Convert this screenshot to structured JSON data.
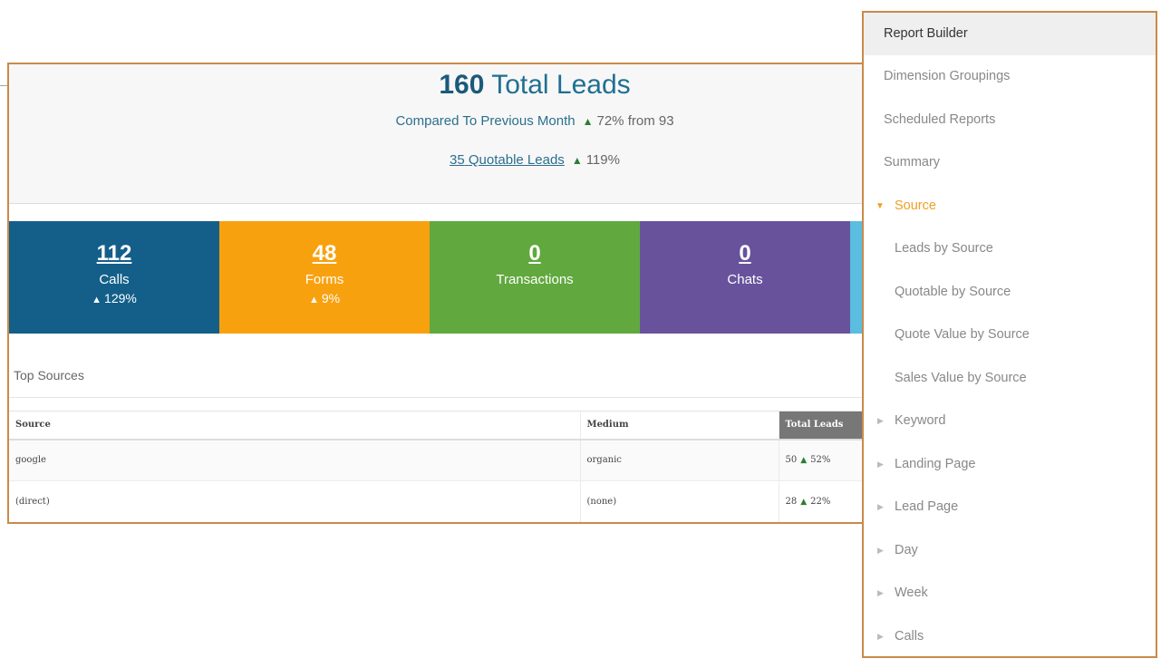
{
  "summary": {
    "total_leads_value": "160",
    "total_leads_label": "Total Leads",
    "compare_label": "Compared To Previous Month",
    "compare_change": "72% from 93",
    "quotable_value": "35",
    "quotable_label": "Quotable Leads",
    "quotable_change": "119%",
    "arrow_up": "▲"
  },
  "tiles": [
    {
      "value": "112",
      "label": "Calls",
      "change": "129%",
      "color": "#145f8a"
    },
    {
      "value": "48",
      "label": "Forms",
      "change": "9%",
      "color": "#f8a10f"
    },
    {
      "value": "0",
      "label": "Transactions",
      "change": "",
      "color": "#61a83e"
    },
    {
      "value": "0",
      "label": "Chats",
      "change": "",
      "color": "#68529c"
    }
  ],
  "top_sources": {
    "title": "Top Sources",
    "columns": [
      "Source",
      "Medium",
      "Total Leads"
    ],
    "rows": [
      {
        "source": "google",
        "medium": "organic",
        "total": "50",
        "change": "52%"
      },
      {
        "source": "(direct)",
        "medium": "(none)",
        "total": "28",
        "change": "22%"
      }
    ]
  },
  "menu": {
    "items": [
      {
        "label": "Report Builder"
      },
      {
        "label": "Dimension Groupings"
      },
      {
        "label": "Scheduled Reports"
      },
      {
        "label": "Summary"
      },
      {
        "label": "Source"
      },
      {
        "label": "Leads by Source"
      },
      {
        "label": "Quotable by Source"
      },
      {
        "label": "Quote Value by Source"
      },
      {
        "label": "Sales Value by Source"
      },
      {
        "label": "Keyword"
      },
      {
        "label": "Landing Page"
      },
      {
        "label": "Lead Page"
      },
      {
        "label": "Day"
      },
      {
        "label": "Week"
      },
      {
        "label": "Calls"
      }
    ],
    "accent_color": "#f0a020"
  }
}
